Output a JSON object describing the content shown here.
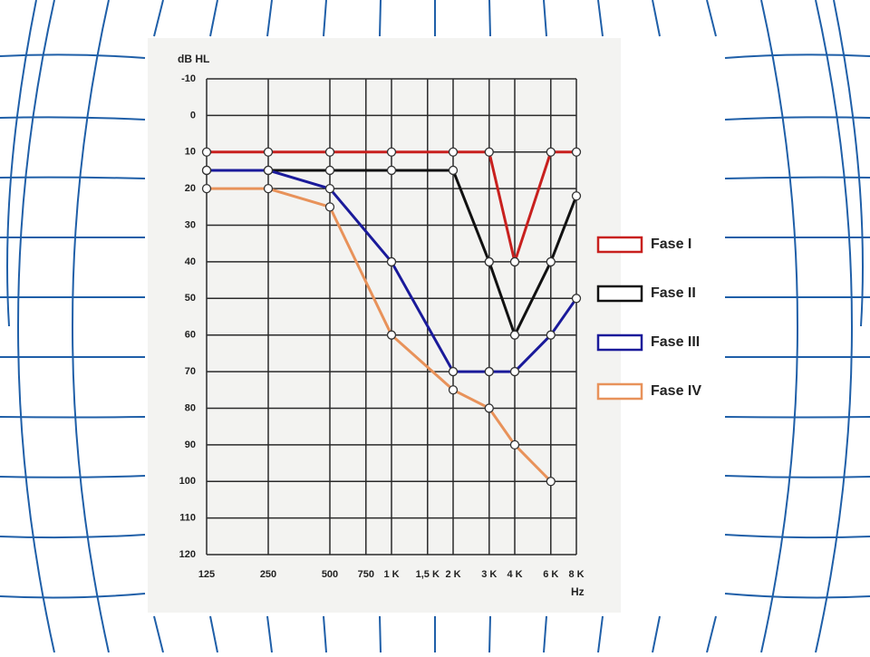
{
  "chart_data": {
    "type": "line",
    "y_label": "dB HL",
    "x_label": "Hz",
    "x": [
      125,
      250,
      500,
      1000,
      2000,
      3000,
      4000,
      6000,
      8000
    ],
    "xscale": "log",
    "xlim": [
      125,
      8000
    ],
    "xticks": [
      125,
      250,
      500,
      750,
      {
        "value": 1000,
        "label": "1 K"
      },
      {
        "value": 1500,
        "label": "1,5 K"
      },
      {
        "value": 2000,
        "label": "2 K"
      },
      {
        "value": 3000,
        "label": "3 K"
      },
      {
        "value": 4000,
        "label": "4 K"
      },
      {
        "value": 6000,
        "label": "6 K"
      },
      {
        "value": 8000,
        "label": "8 K"
      }
    ],
    "ylim": [
      -10,
      120
    ],
    "y_inverted": true,
    "yticks": [
      -10,
      0,
      10,
      20,
      30,
      40,
      50,
      60,
      70,
      80,
      90,
      100,
      110,
      120
    ],
    "grid": true,
    "legend": "right",
    "series": [
      {
        "name": "Fase I",
        "color": "#c8201e",
        "values": [
          10,
          10,
          10,
          10,
          10,
          10,
          40,
          10,
          10
        ]
      },
      {
        "name": "Fase II",
        "color": "#111111",
        "values": [
          15,
          15,
          15,
          15,
          15,
          40,
          60,
          40,
          22
        ]
      },
      {
        "name": "Fase III",
        "color": "#1a1a9a",
        "values": [
          15,
          15,
          20,
          40,
          70,
          70,
          70,
          60,
          50
        ]
      },
      {
        "name": "Fase IV",
        "color": "#e8925a",
        "values": [
          20,
          20,
          25,
          60,
          75,
          80,
          90,
          100,
          null
        ]
      }
    ]
  }
}
